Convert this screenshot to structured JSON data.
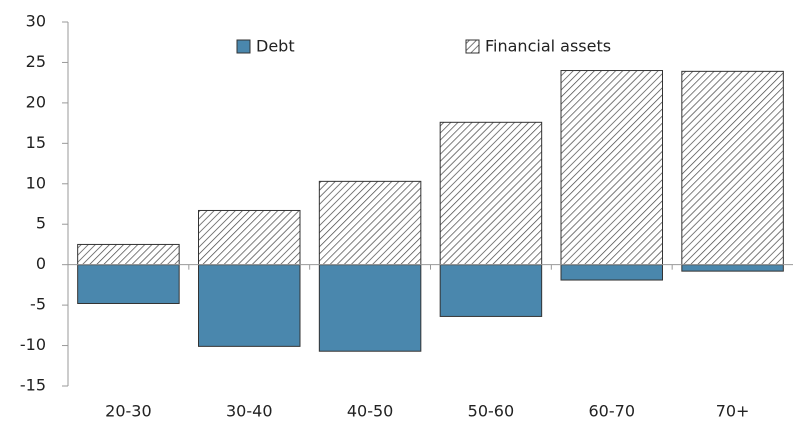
{
  "chart_data": {
    "type": "bar",
    "categories": [
      "20-30",
      "30-40",
      "40-50",
      "50-60",
      "60-70",
      "70+"
    ],
    "series": [
      {
        "name": "Debt",
        "color": "#4a87ad",
        "values": [
          -4.8,
          -10.1,
          -10.7,
          -6.4,
          -1.9,
          -0.8
        ]
      },
      {
        "name": "Financial assets",
        "color": "#444444",
        "pattern": "hatch",
        "values": [
          2.5,
          6.7,
          10.3,
          17.6,
          24.0,
          23.9
        ]
      }
    ],
    "ylim": [
      -15,
      30
    ],
    "yticks": [
      -15,
      -10,
      -5,
      0,
      5,
      10,
      15,
      20,
      25,
      30
    ],
    "legend": "top",
    "grid": false
  }
}
